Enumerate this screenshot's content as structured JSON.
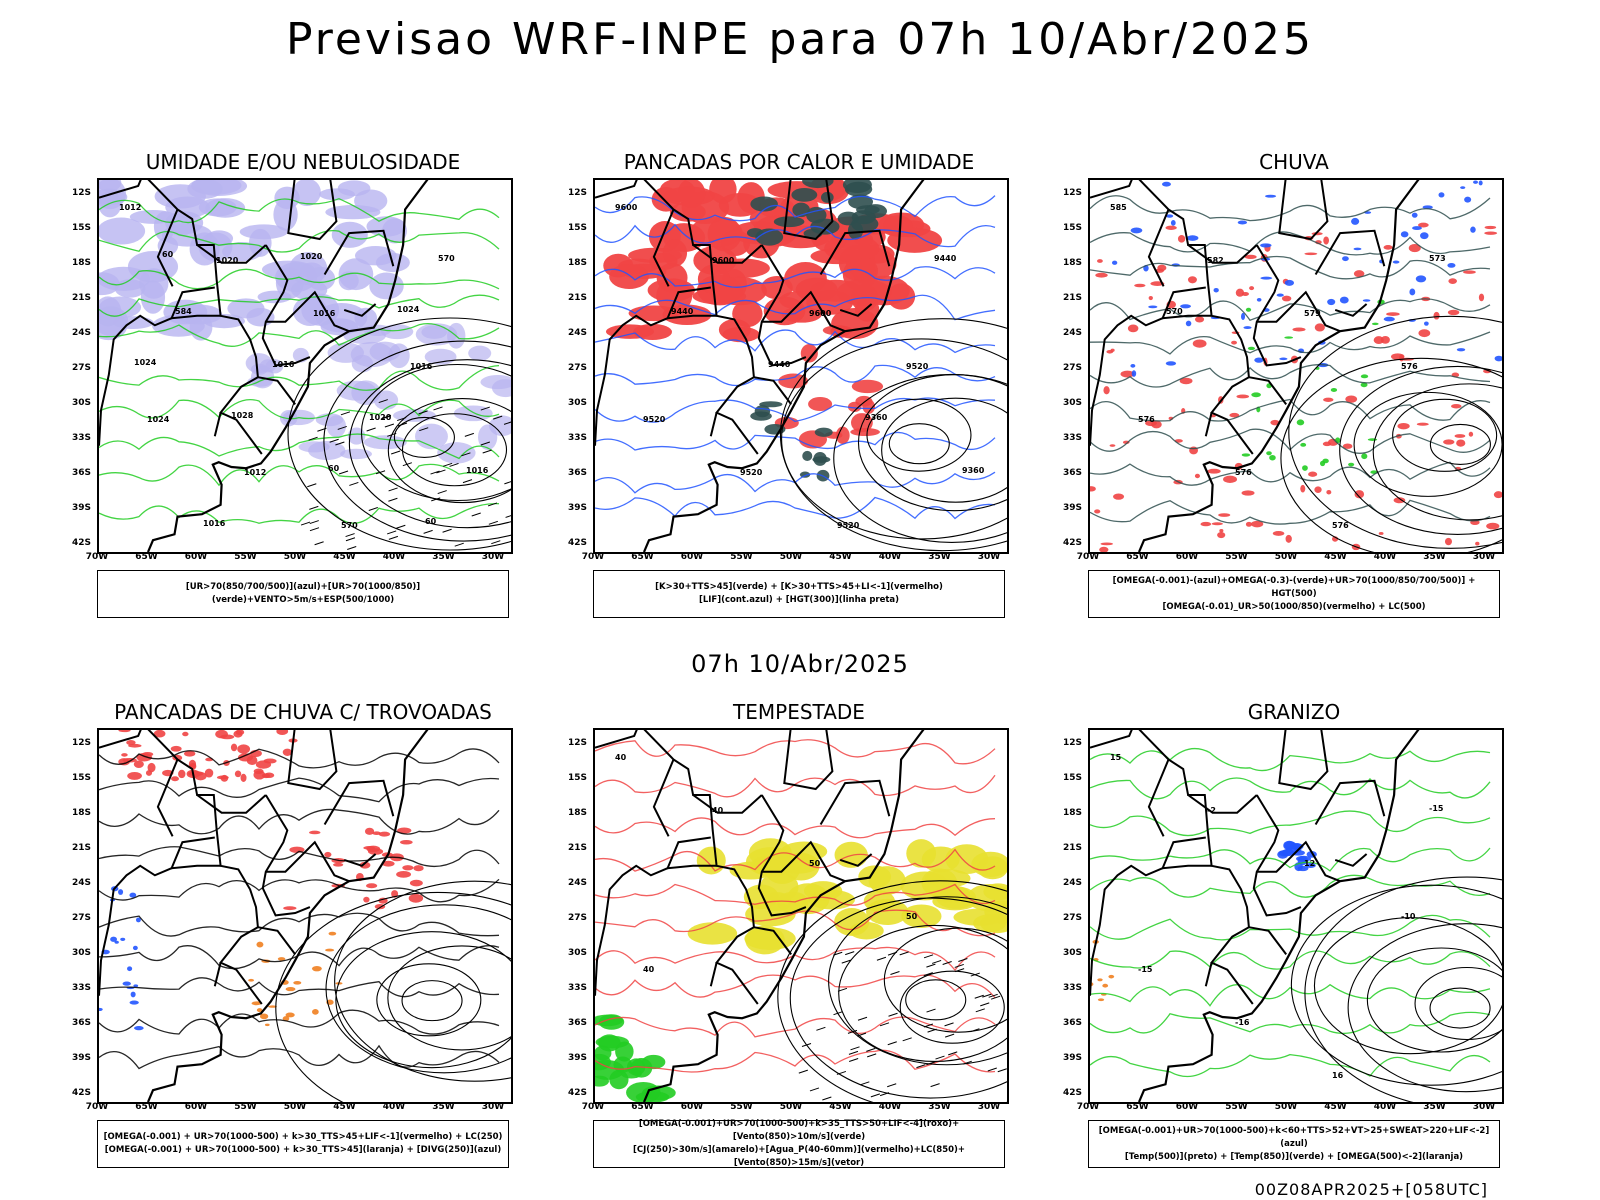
{
  "title": "Previsao WRF-INPE  para 07h 10/Abr/2025",
  "subtitle": "07h 10/Abr/2025",
  "footer": "00Z08APR2025+[058UTC]",
  "colors": {
    "blue_fill": "#b8b4f0",
    "green": "#22cc22",
    "red": "#f04444",
    "dark_teal": "#2f4f4f",
    "blue": "#2255ff",
    "yellow": "#e8e030",
    "orange": "#f08020"
  },
  "axes": {
    "y_ticks": [
      "12S",
      "15S",
      "18S",
      "21S",
      "24S",
      "27S",
      "30S",
      "33S",
      "36S",
      "39S",
      "42S"
    ],
    "x_ticks": [
      "70W",
      "65W",
      "60W",
      "55W",
      "50W",
      "45W",
      "40W",
      "35W",
      "30W"
    ]
  },
  "chart_data": [
    {
      "type": "map",
      "title": "UMIDADE E/OU NEBULOSIDADE",
      "legend": [
        "[UR>70(850/700/500)](azul)+[UR>70(1000/850)](verde)+VENTO>5m/s+ESP(500/1000)"
      ],
      "contour_labels": [
        "1012",
        "1020",
        "1016",
        "1016",
        "1024",
        "1012",
        "570",
        "570",
        "584",
        "1016",
        "1020",
        "1016",
        "1016",
        "1020",
        "1024",
        "1024",
        "1028",
        "60",
        "60",
        "60"
      ]
    },
    {
      "type": "map",
      "title": "PANCADAS POR CALOR E UMIDADE",
      "legend": [
        "[K>30+TTS>45](verde) + [K>30+TTS>45+LI<-1](vermelho)",
        "[LIF](cont.azul) + [HGT(300)](linha preta)"
      ],
      "contour_labels": [
        "9600",
        "9600",
        "9600",
        "9520",
        "9520",
        "9520",
        "9520",
        "9440",
        "9440",
        "9440",
        "9360",
        "9360"
      ]
    },
    {
      "type": "map",
      "title": "CHUVA",
      "legend": [
        "[OMEGA(-0.001)-(azul)+OMEGA(-0.3)-(verde)+UR>70(1000/850/700/500)] + HGT(500)",
        "[OMEGA(-0.01)_UR>50(1000/850)(vermelho) + LC(500)"
      ],
      "contour_labels": [
        "585",
        "582",
        "579",
        "576",
        "576",
        "576",
        "576",
        "573",
        "570"
      ]
    },
    {
      "type": "map",
      "title": "PANCADAS DE CHUVA C/ TROVOADAS",
      "legend": [
        "[OMEGA(-0.001) + UR>70(1000-500) + k>30_TTS>45+LIF<-1](vermelho) + LC(250)",
        "[OMEGA(-0.001) + UR>70(1000-500) + k>30_TTS>45](laranja) + [DIVG(250)](azul)"
      ],
      "contour_labels": []
    },
    {
      "type": "map",
      "title": "TEMPESTADE",
      "legend": [
        "[OMEGA(-0.001)+UR>70(1000-500)+k>35_TTS>50+LIF<-4](roxo)+[Vento(850)>10m/s](verde)",
        "[CJ(250)>30m/s](amarelo)+[Agua_P(40-60mm)](vermelho)+LC(850)+[Vento(850)>15m/s](vetor)"
      ],
      "contour_labels": [
        "40",
        "40",
        "50",
        "50",
        "40"
      ]
    },
    {
      "type": "map",
      "title": "GRANIZO",
      "legend": [
        "[OMEGA(-0.001)+UR>70(1000-500)+k<60+TTS>52+VT>25+SWEAT>220+LIF<-2](azul)",
        "[Temp(500)](preto) + [Temp(850)](verde) + [OMEGA(500)<-2](laranja)"
      ],
      "contour_labels": [
        "15",
        "-2",
        "12",
        "-10",
        "-15",
        "-16",
        "16",
        "-15"
      ]
    }
  ]
}
